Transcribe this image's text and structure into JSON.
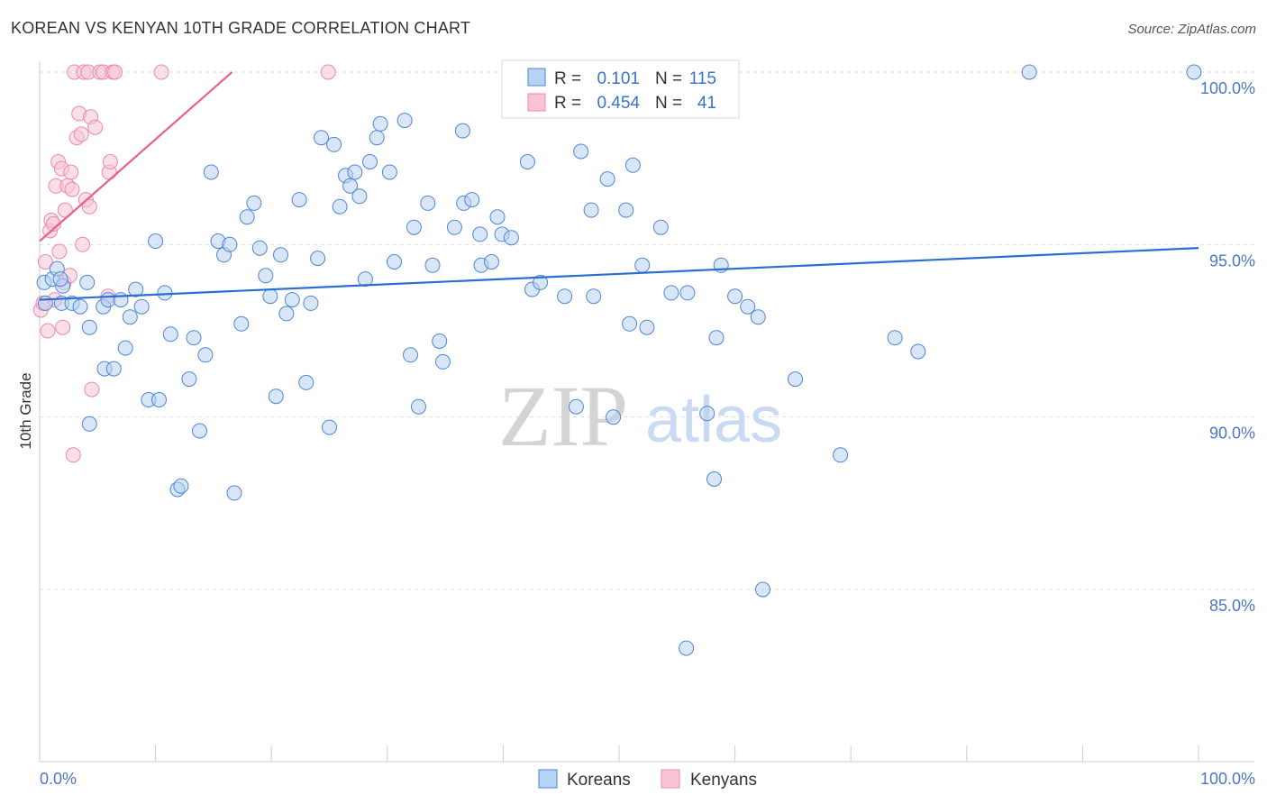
{
  "header": {
    "title": "KOREAN VS KENYAN 10TH GRADE CORRELATION CHART",
    "source": "Source: ZipAtlas.com"
  },
  "watermark": {
    "zip": "ZIP",
    "atlas": "atlas"
  },
  "legend": {
    "rows": [
      {
        "r_label": "R =",
        "r_value": "0.101",
        "n_label": "N =",
        "n_value": "115"
      },
      {
        "r_label": "R =",
        "r_value": "0.454",
        "n_label": "N =",
        "n_value": "41"
      }
    ]
  },
  "bottom_legend": {
    "koreans": "Koreans",
    "kenyans": "Kenyans"
  },
  "colors": {
    "koreans_fill": "#b8d2f3",
    "koreans_stroke": "#4f86d6",
    "koreans_line": "#2a6fcf",
    "kenyans_fill": "#f8c4d6",
    "kenyans_stroke": "#ec89ab",
    "kenyans_line": "#e8608e",
    "grid": "#dddddd",
    "tick_label": "#4a78c2"
  },
  "chart_data": {
    "type": "scatter",
    "title": "KOREAN VS KENYAN 10TH GRADE CORRELATION CHART",
    "xlabel": "",
    "ylabel": "10th Grade",
    "xlim": [
      0,
      100
    ],
    "ylim": [
      80.5,
      100.8
    ],
    "x_tick_labels": [
      {
        "value": 0,
        "label": "0.0%"
      },
      {
        "value": 100,
        "label": "100.0%"
      }
    ],
    "y_ticks": [
      {
        "value": 100,
        "label": "100.0%"
      },
      {
        "value": 95,
        "label": "95.0%"
      },
      {
        "value": 90,
        "label": "90.0%"
      },
      {
        "value": 85,
        "label": "85.0%"
      }
    ],
    "series": [
      {
        "name": "Koreans",
        "R": 0.101,
        "N": 115,
        "trend": {
          "x": [
            0,
            100
          ],
          "y": [
            93.4,
            94.9
          ]
        },
        "points": [
          [
            0.4,
            93.9
          ],
          [
            1.1,
            94.0
          ],
          [
            1.5,
            94.3
          ],
          [
            1.9,
            93.3
          ],
          [
            2.0,
            93.8
          ],
          [
            2.8,
            93.3
          ],
          [
            4.1,
            93.9
          ],
          [
            4.3,
            89.8
          ],
          [
            4.3,
            92.6
          ],
          [
            5.5,
            93.2
          ],
          [
            5.6,
            91.4
          ],
          [
            5.9,
            93.4
          ],
          [
            6.4,
            91.4
          ],
          [
            7.0,
            93.4
          ],
          [
            7.4,
            92.0
          ],
          [
            7.8,
            92.9
          ],
          [
            8.3,
            93.7
          ],
          [
            8.8,
            93.2
          ],
          [
            9.4,
            90.5
          ],
          [
            10.0,
            95.1
          ],
          [
            10.3,
            90.5
          ],
          [
            10.8,
            93.6
          ],
          [
            11.3,
            92.4
          ],
          [
            11.9,
            87.9
          ],
          [
            12.2,
            88.0
          ],
          [
            12.9,
            91.1
          ],
          [
            13.3,
            92.3
          ],
          [
            13.8,
            89.6
          ],
          [
            14.3,
            91.8
          ],
          [
            14.8,
            97.1
          ],
          [
            15.4,
            95.1
          ],
          [
            15.9,
            94.7
          ],
          [
            16.4,
            95.0
          ],
          [
            16.8,
            87.8
          ],
          [
            17.4,
            92.7
          ],
          [
            17.9,
            95.8
          ],
          [
            18.5,
            96.2
          ],
          [
            19.0,
            94.9
          ],
          [
            19.5,
            94.1
          ],
          [
            19.9,
            93.5
          ],
          [
            20.4,
            90.6
          ],
          [
            20.8,
            94.7
          ],
          [
            21.3,
            93.0
          ],
          [
            21.8,
            93.4
          ],
          [
            22.4,
            96.3
          ],
          [
            23.0,
            91.0
          ],
          [
            23.4,
            93.3
          ],
          [
            24.0,
            94.6
          ],
          [
            24.3,
            98.1
          ],
          [
            25.0,
            89.7
          ],
          [
            25.4,
            97.9
          ],
          [
            25.9,
            96.1
          ],
          [
            26.4,
            97.0
          ],
          [
            26.8,
            96.7
          ],
          [
            27.2,
            97.1
          ],
          [
            27.6,
            96.4
          ],
          [
            28.1,
            94.0
          ],
          [
            28.5,
            97.4
          ],
          [
            29.1,
            98.1
          ],
          [
            29.4,
            98.5
          ],
          [
            30.2,
            97.1
          ],
          [
            30.6,
            94.5
          ],
          [
            31.5,
            98.6
          ],
          [
            32.0,
            91.8
          ],
          [
            32.3,
            95.5
          ],
          [
            32.7,
            90.3
          ],
          [
            33.5,
            96.2
          ],
          [
            33.9,
            94.4
          ],
          [
            34.5,
            92.2
          ],
          [
            34.8,
            91.6
          ],
          [
            35.8,
            95.5
          ],
          [
            36.5,
            98.3
          ],
          [
            36.6,
            96.2
          ],
          [
            37.3,
            96.3
          ],
          [
            38.0,
            95.3
          ],
          [
            38.1,
            94.4
          ],
          [
            39.0,
            94.5
          ],
          [
            39.5,
            95.8
          ],
          [
            39.9,
            95.3
          ],
          [
            40.7,
            95.2
          ],
          [
            42.1,
            97.4
          ],
          [
            42.5,
            93.7
          ],
          [
            43.2,
            93.9
          ],
          [
            45.3,
            93.5
          ],
          [
            46.3,
            90.3
          ],
          [
            46.7,
            97.7
          ],
          [
            47.6,
            96.0
          ],
          [
            47.8,
            93.5
          ],
          [
            49.0,
            96.9
          ],
          [
            49.5,
            90.0
          ],
          [
            50.6,
            96.0
          ],
          [
            50.9,
            92.7
          ],
          [
            51.2,
            97.3
          ],
          [
            52.0,
            94.4
          ],
          [
            52.4,
            92.6
          ],
          [
            53.6,
            95.5
          ],
          [
            54.5,
            93.6
          ],
          [
            55.8,
            83.3
          ],
          [
            55.9,
            93.6
          ],
          [
            56.2,
            99.1
          ],
          [
            57.6,
            90.1
          ],
          [
            58.2,
            88.2
          ],
          [
            58.4,
            92.3
          ],
          [
            58.8,
            94.4
          ],
          [
            60.0,
            93.5
          ],
          [
            61.1,
            93.2
          ],
          [
            62.0,
            92.9
          ],
          [
            62.4,
            85.0
          ],
          [
            65.2,
            91.1
          ],
          [
            69.1,
            88.9
          ],
          [
            73.8,
            92.3
          ],
          [
            75.8,
            91.9
          ],
          [
            85.4,
            100.0
          ],
          [
            99.6,
            100.0
          ],
          [
            0.5,
            93.3
          ],
          [
            3.5,
            93.2
          ],
          [
            1.8,
            94.0
          ]
        ]
      },
      {
        "name": "Kenyans",
        "R": 0.454,
        "N": 41,
        "trend": {
          "x": [
            0,
            16.6
          ],
          "y": [
            95.1,
            100.0
          ]
        },
        "points": [
          [
            0.1,
            93.1
          ],
          [
            0.3,
            93.3
          ],
          [
            0.5,
            94.5
          ],
          [
            0.7,
            92.5
          ],
          [
            0.9,
            95.4
          ],
          [
            1.0,
            95.7
          ],
          [
            1.2,
            95.6
          ],
          [
            1.3,
            93.4
          ],
          [
            1.4,
            96.7
          ],
          [
            1.6,
            97.4
          ],
          [
            1.7,
            94.8
          ],
          [
            1.9,
            97.2
          ],
          [
            2.0,
            92.6
          ],
          [
            2.1,
            93.9
          ],
          [
            2.2,
            96.0
          ],
          [
            2.4,
            96.7
          ],
          [
            2.6,
            94.1
          ],
          [
            2.7,
            97.1
          ],
          [
            2.8,
            96.6
          ],
          [
            2.9,
            88.9
          ],
          [
            3.0,
            100.0
          ],
          [
            3.2,
            98.1
          ],
          [
            3.4,
            98.8
          ],
          [
            3.6,
            98.2
          ],
          [
            3.7,
            95.0
          ],
          [
            3.8,
            100.0
          ],
          [
            4.0,
            96.3
          ],
          [
            4.2,
            100.0
          ],
          [
            4.3,
            96.1
          ],
          [
            4.4,
            98.7
          ],
          [
            4.5,
            90.8
          ],
          [
            4.8,
            98.4
          ],
          [
            5.2,
            100.0
          ],
          [
            5.5,
            100.0
          ],
          [
            5.9,
            93.5
          ],
          [
            6.0,
            97.1
          ],
          [
            6.1,
            97.4
          ],
          [
            6.3,
            100.0
          ],
          [
            6.5,
            100.0
          ],
          [
            10.5,
            100.0
          ],
          [
            24.9,
            100.0
          ]
        ]
      }
    ]
  }
}
